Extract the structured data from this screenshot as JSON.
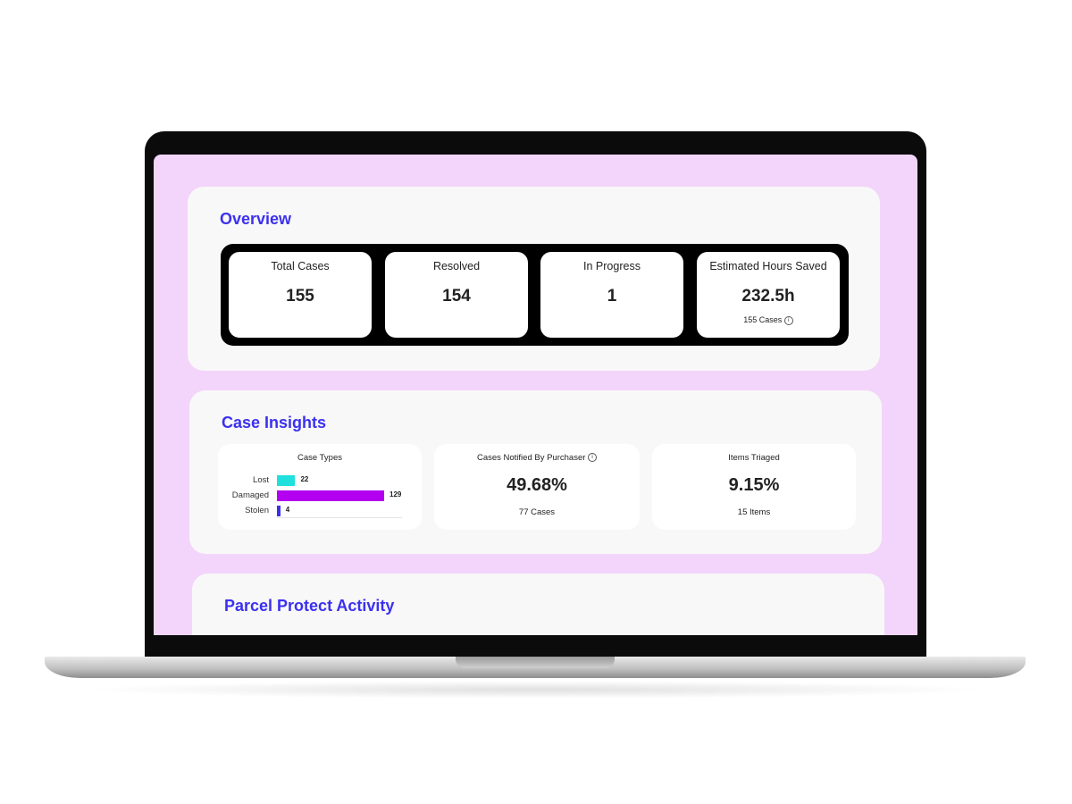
{
  "colors": {
    "accent": "#3b30f0",
    "screen_bg": "#f3d4fb",
    "lost": "#1fe0dc",
    "damaged": "#b300f0",
    "stolen": "#3b30f0"
  },
  "overview": {
    "title": "Overview",
    "stats": [
      {
        "label": "Total Cases",
        "value": "155"
      },
      {
        "label": "Resolved",
        "value": "154"
      },
      {
        "label": "In Progress",
        "value": "1"
      },
      {
        "label": "Estimated Hours Saved",
        "value": "232.5h",
        "sub": "155 Cases",
        "icon": "info-icon"
      }
    ]
  },
  "case_insights": {
    "title": "Case Insights",
    "case_types": {
      "title": "Case Types",
      "chart_data": {
        "type": "bar",
        "orientation": "horizontal",
        "categories": [
          "Lost",
          "Damaged",
          "Stolen"
        ],
        "values": [
          22,
          129,
          4
        ],
        "value_labels": [
          "22",
          "129",
          "4"
        ]
      }
    },
    "notified": {
      "title": "Cases Notified By Purchaser",
      "value": "49.68%",
      "sub": "77 Cases",
      "icon": "info-icon"
    },
    "triaged": {
      "title": "Items Triaged",
      "value": "9.15%",
      "sub": "15 Items"
    }
  },
  "activity": {
    "title": "Parcel Protect Activity"
  }
}
